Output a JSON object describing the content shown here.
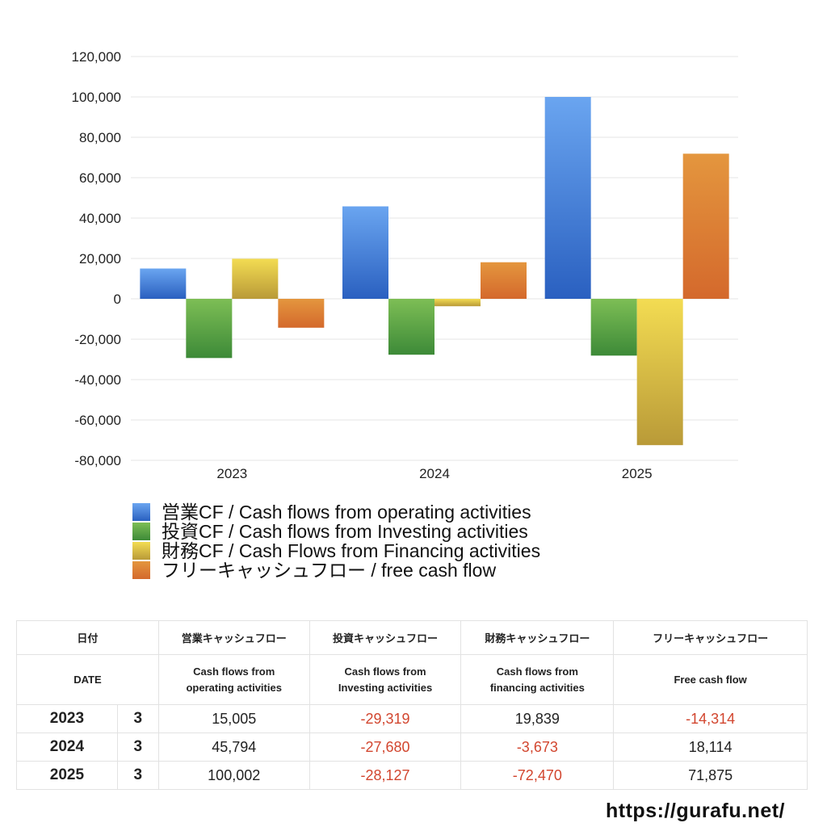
{
  "chart_data": {
    "type": "bar",
    "title": "",
    "xlabel": "",
    "ylabel": "",
    "categories": [
      "2023",
      "2024",
      "2025"
    ],
    "series": [
      {
        "name": "営業CF / Cash flows from operating activities",
        "values": [
          15005,
          45794,
          100002
        ],
        "color_top": "#6aa5f0",
        "color_bottom": "#2a60c0"
      },
      {
        "name": "投資CF / Cash flows from Investing activities",
        "values": [
          -29319,
          -27680,
          -28127
        ],
        "color_top": "#7dbe55",
        "color_bottom": "#3d8a38"
      },
      {
        "name": "財務CF / Cash Flows from Financing activities",
        "values": [
          19839,
          -3673,
          -72470
        ],
        "color_top": "#f3dc52",
        "color_bottom": "#b99a38"
      },
      {
        "name": "フリーキャッシュフロー / free cash flow",
        "values": [
          -14314,
          18114,
          71875
        ],
        "color_top": "#e4963e",
        "color_bottom": "#d4692c"
      }
    ],
    "yticks": [
      "120,000",
      "100,000",
      "80,000",
      "60,000",
      "40,000",
      "20,000",
      "0",
      "-20,000",
      "-40,000",
      "-60,000",
      "-80,000"
    ],
    "ylim": [
      -80000,
      120000
    ],
    "grid": true,
    "legend_position": "bottom"
  },
  "legend": [
    {
      "label": "営業CF / Cash flows from operating activities",
      "color": "#3f7fd8"
    },
    {
      "label": "投資CF / Cash flows from Investing activities",
      "color": "#4f9a40"
    },
    {
      "label": "財務CF / Cash Flows from Financing activities",
      "color": "#d8c048"
    },
    {
      "label": "フリーキャッシュフロー / free cash flow",
      "color": "#db7a34"
    }
  ],
  "table": {
    "header_jp": {
      "date": "日付",
      "operating": "営業キャッシュフロー",
      "investing": "投資キャッシュフロー",
      "financing": "財務キャッシュフロー",
      "free": "フリーキャッシュフロー"
    },
    "header_en": {
      "date": "DATE",
      "operating_1": "Cash flows from",
      "operating_2": "operating activities",
      "investing_1": "Cash flows from",
      "investing_2": "Investing activities",
      "financing_1": "Cash flows from",
      "financing_2": "financing activities",
      "free": "Free cash flow"
    },
    "rows": [
      {
        "year": "2023",
        "month": "3",
        "operating": "15,005",
        "investing": "-29,319",
        "financing": "19,839",
        "free": "-14,314"
      },
      {
        "year": "2024",
        "month": "3",
        "operating": "45,794",
        "investing": "-27,680",
        "financing": "-3,673",
        "free": "18,114"
      },
      {
        "year": "2025",
        "month": "3",
        "operating": "100,002",
        "investing": "-28,127",
        "financing": "-72,470",
        "free": "71,875"
      }
    ]
  },
  "footer": {
    "url": "https://gurafu.net/"
  }
}
